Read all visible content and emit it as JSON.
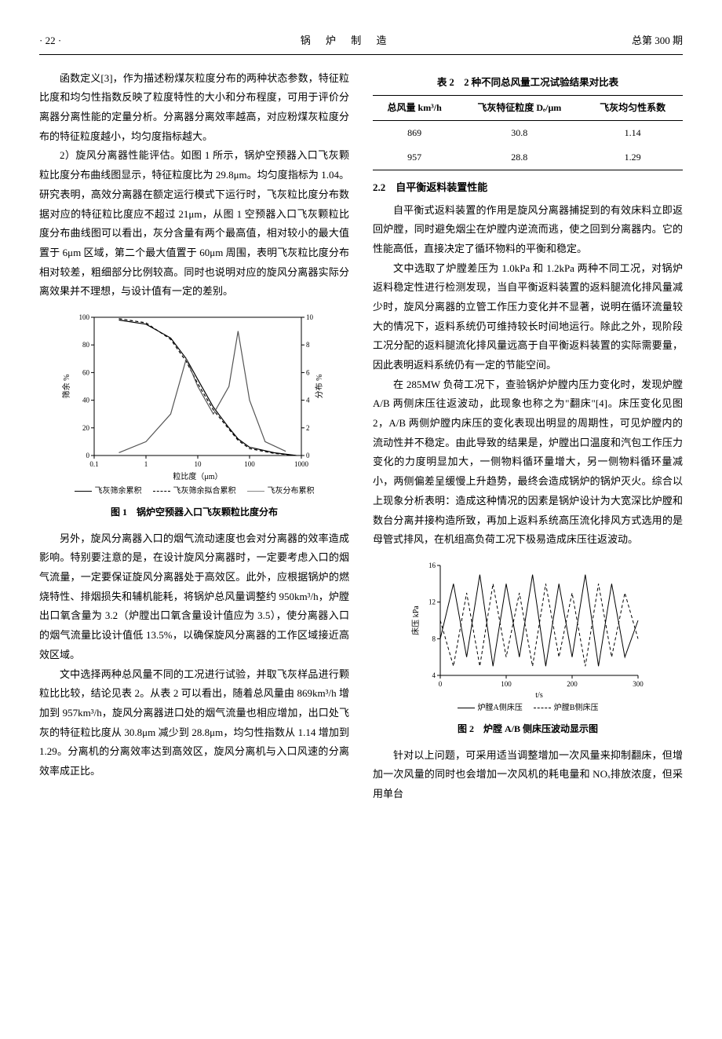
{
  "header": {
    "left": "· 22 ·",
    "center": "锅 炉 制 造",
    "right": "总第 300 期"
  },
  "left_col": {
    "p1": "函数定义[3]，作为描述粉煤灰粒度分布的两种状态参数，特征粒比度和均匀性指数反映了粒度特性的大小和分布程度，可用于评价分离器分离性能的定量分析。分离器分离效率越高，对应粉煤灰粒度分布的特征粒度越小，均匀度指标越大。",
    "p2": "2）旋风分离器性能评估。如图 1 所示，锅炉空预器入口飞灰颗粒比度分布曲线图显示，特征粒度比为 29.8μm。均匀度指标为 1.04。研究表明，高效分离器在额定运行模式下运行时，飞灰粒比度分布数据对应的特征粒比度应不超过 21μm，从图 1 空预器入口飞灰颗粒比度分布曲线图可以看出，灰分含量有两个最高值，相对较小的最大值置于 6μm 区域，第二个最大值置于 60μm 周围，表明飞灰粒比度分布相对较差，粗细部分比例较高。同时也说明对应的旋风分离器实际分离效果并不理想，与设计值有一定的差别。",
    "fig1_caption": "图 1　锅炉空预器入口飞灰颗粒比度分布",
    "p3": "另外，旋风分离器入口的烟气流动速度也会对分离器的效率造成影响。特别要注意的是，在设计旋风分离器时，一定要考虑入口的烟气流量，一定要保证旋风分离器处于高效区。此外，应根据锅炉的燃烧特性、排烟损失和辅机能耗，将锅炉总风量调整约 950km³/h，炉膛出口氧含量为 3.2（炉膛出口氧含量设计值应为 3.5），使分离器入口的烟气流量比设计值低 13.5%，以确保旋风分离器的工作区域接近高效区域。",
    "p4": "文中选择两种总风量不同的工况进行试验，并取飞灰样品进行颗粒比比较，结论见表 2。从表 2 可以看出，随着总风量由 869km³/h 增加到 957km³/h，旋风分离器进口处的烟气流量也相应增加，出口处飞灰的特征粒比度从 30.8μm 减少到 28.8μm，均匀性指数从 1.14 增加到 1.29。分离机的分离效率达到高效区，旋风分离机与入口风速的分离效率成正比。"
  },
  "right_col": {
    "table2": {
      "caption": "表 2　2 种不同总风量工况试验结果对比表",
      "columns": [
        "总风量 km³/h",
        "飞灰特征粒度 Dₑ/μm",
        "飞灰均匀性系数"
      ],
      "rows": [
        [
          "869",
          "30.8",
          "1.14"
        ],
        [
          "957",
          "28.8",
          "1.29"
        ]
      ]
    },
    "sec22_title": "2.2　自平衡返料装置性能",
    "p1": "自平衡式返料装置的作用是旋风分离器捕捉到的有效床料立即返回炉膛，同时避免烟尘在炉膛内逆流而逃，使之回到分离器内。它的性能高低，直接决定了循环物料的平衡和稳定。",
    "p2": "文中选取了炉膛差压为 1.0kPa 和 1.2kPa 两种不同工况，对锅炉返料稳定性进行检测发现，当自平衡返料装置的返料腿流化排风量减少时，旋风分离器的立管工作压力变化并不显著，说明在循环流量较大的情况下，返料系统仍可维持较长时间地运行。除此之外，现阶段工况分配的返料腿流化排风量远高于自平衡返料装置的实际需要量，因此表明返料系统仍有一定的节能空间。",
    "p3": "在 285MW 负荷工况下，查验锅炉炉膛内压力变化时，发现炉膛 A/B 两侧床压往返波动，此现象也称之为\"翻床\"[4]。床压变化见图 2，A/B 两侧炉膛内床压的变化表现出明显的周期性，可见炉膛内的流动性并不稳定。由此导致的结果是，炉膛出口温度和汽包工作压力变化的力度明显加大，一侧物料循环量增大，另一侧物料循环量减小，两侧偏差呈缓慢上升趋势，最终会造成锅炉的锅炉灭火。综合以上现象分析表明：造成这种情况的因素是锅炉设计为大宽深比炉膛和数台分离并接构造所致，再加上返料系统高压流化排风方式选用的是母管式排风，在机组高负荷工况下极易造成床压往返波动。",
    "fig2_caption": "图 2　炉膛 A/B 侧床压波动显示图",
    "p4": "针对以上问题，可采用适当调整增加一次风量来抑制翻床，但增加一次风量的同时也会增加一次风机的耗电量和 NOₓ排放浓度，但采用单台"
  },
  "fig1": {
    "type": "line",
    "xlabel": "粒比度（μm）",
    "ylabel_left": "筛余 %",
    "ylabel_right": "分布 %",
    "xscale": "log",
    "xlim": [
      0.1,
      1000
    ],
    "ylim_left": [
      0,
      100
    ],
    "ylim_right": [
      0,
      10
    ],
    "xticks": [
      0.1,
      1,
      10,
      100,
      1000
    ],
    "yticks_left": [
      0,
      20,
      40,
      60,
      80,
      100
    ],
    "yticks_right": [
      0,
      2,
      4,
      6,
      8,
      10
    ],
    "series": [
      {
        "name": "飞灰筛余累积",
        "style": "solid",
        "color": "#000000",
        "x": [
          0.3,
          1,
          3,
          6,
          10,
          20,
          40,
          60,
          100,
          300,
          800
        ],
        "y": [
          98,
          95,
          85,
          70,
          55,
          35,
          20,
          12,
          6,
          2,
          0
        ]
      },
      {
        "name": "飞灰筛余拟合累积",
        "style": "dash",
        "color": "#000000",
        "x": [
          0.3,
          1,
          3,
          6,
          10,
          20,
          40,
          60,
          100,
          300,
          800
        ],
        "y": [
          99,
          96,
          84,
          68,
          52,
          33,
          19,
          11,
          5,
          1.5,
          0
        ]
      },
      {
        "name": "飞灰分布累积",
        "style": "solid",
        "color": "#555555",
        "x": [
          0.3,
          1,
          3,
          6,
          10,
          20,
          40,
          60,
          100,
          200,
          500
        ],
        "y": [
          0.2,
          1,
          3,
          7,
          5,
          3,
          5,
          9,
          4,
          1,
          0.3
        ]
      }
    ],
    "legend": [
      "飞灰筛余累积",
      "飞灰筛余拟合累积",
      "飞灰分布累积"
    ],
    "background_color": "#ffffff",
    "grid_color": "#cccccc"
  },
  "fig2": {
    "type": "line",
    "xlabel": "t/s",
    "ylabel": "床压 kPa",
    "xlim": [
      0,
      300
    ],
    "ylim": [
      4,
      16
    ],
    "xticks": [
      0,
      100,
      200,
      300
    ],
    "yticks": [
      4,
      8,
      12,
      16
    ],
    "series": [
      {
        "name": "炉膛A侧床压",
        "style": "solid",
        "color": "#000000",
        "x": [
          0,
          20,
          40,
          60,
          80,
          100,
          120,
          140,
          160,
          180,
          200,
          220,
          240,
          260,
          280,
          300
        ],
        "y": [
          8,
          14,
          6,
          15,
          5,
          14,
          6,
          15,
          5,
          14,
          6,
          15,
          5,
          14,
          6,
          10
        ]
      },
      {
        "name": "炉膛B侧床压",
        "style": "dash",
        "color": "#000000",
        "x": [
          0,
          20,
          40,
          60,
          80,
          100,
          120,
          140,
          160,
          180,
          200,
          220,
          240,
          260,
          280,
          300
        ],
        "y": [
          10,
          5,
          13,
          5,
          14,
          6,
          13,
          5,
          14,
          6,
          13,
          5,
          14,
          6,
          13,
          8
        ]
      }
    ],
    "legend": [
      "炉膛A侧床压",
      "炉膛B侧床压"
    ],
    "background_color": "#ffffff"
  }
}
